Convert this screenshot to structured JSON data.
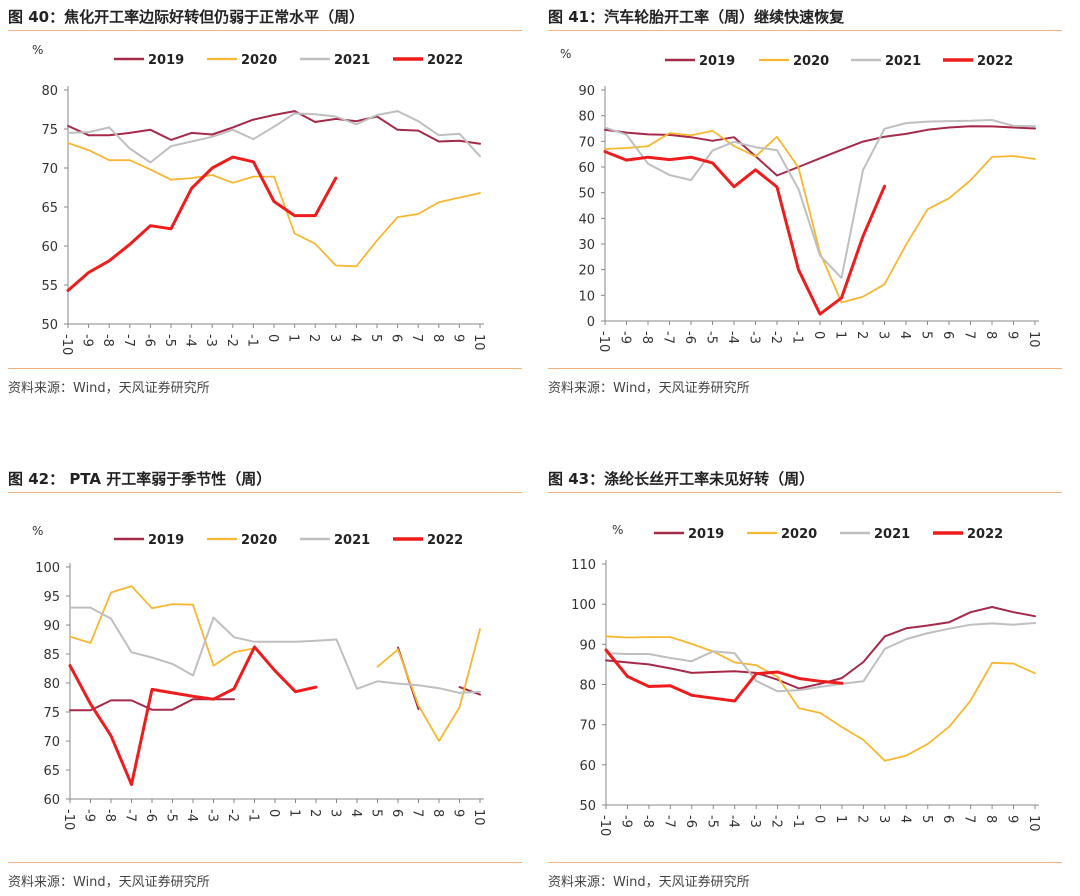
{
  "legend_labels": [
    "2019",
    "2020",
    "2021",
    "2022"
  ],
  "colors": {
    "2019": "#a52a4a",
    "2020": "#f7b731",
    "2021": "#bfbfbf",
    "2022": "#ee1c1c"
  },
  "chart_data": [
    {
      "type": "line",
      "title": "图 40：焦化开工率边际好转但仍弱于正常水平（周）",
      "source": "资料来源：Wind，天风证券研究所",
      "ylabel": "%",
      "ylim": [
        50,
        80
      ],
      "yticks": [
        50,
        55,
        60,
        65,
        70,
        75,
        80
      ],
      "x": [
        -10,
        -9,
        -8,
        -7,
        -6,
        -5,
        -4,
        -3,
        -2,
        -1,
        0,
        1,
        2,
        3,
        4,
        5,
        6,
        7,
        8,
        9,
        10
      ],
      "series": [
        {
          "name": "2019",
          "values": [
            75.4,
            74.2,
            74.2,
            74.5,
            74.9,
            73.6,
            74.5,
            74.3,
            75.2,
            76.2,
            76.8,
            77.3,
            75.9,
            76.3,
            76.0,
            76.6,
            74.9,
            74.8,
            73.4,
            73.5,
            73.1
          ]
        },
        {
          "name": "2020",
          "values": [
            73.2,
            72.3,
            71.0,
            71.0,
            69.8,
            68.5,
            68.7,
            69.1,
            68.1,
            68.9,
            68.9,
            61.6,
            60.3,
            57.5,
            57.4,
            60.7,
            63.7,
            64.1,
            65.6,
            66.2,
            66.8
          ]
        },
        {
          "name": "2021",
          "values": [
            74.5,
            74.6,
            75.2,
            72.5,
            70.7,
            72.8,
            73.4,
            74.0,
            74.9,
            73.7,
            75.3,
            77.0,
            76.9,
            76.6,
            75.6,
            76.8,
            77.3,
            76.0,
            74.2,
            74.4,
            71.5
          ]
        },
        {
          "name": "2022",
          "values": [
            54.3,
            56.6,
            58.1,
            60.2,
            62.6,
            62.2,
            67.4,
            70.0,
            71.4,
            70.8,
            65.7,
            63.9,
            63.9,
            68.7,
            null,
            null,
            null,
            null,
            null,
            null,
            null
          ]
        }
      ]
    },
    {
      "type": "line",
      "title": "图 41：汽车轮胎开工率（周）继续快速恢复",
      "source": "资料来源：Wind，天风证券研究所",
      "ylabel": "%",
      "ylim": [
        0,
        90
      ],
      "yticks": [
        0,
        10,
        20,
        30,
        40,
        50,
        60,
        70,
        80,
        90
      ],
      "x": [
        -10,
        -9,
        -8,
        -7,
        -6,
        -5,
        -4,
        -3,
        -2,
        -1,
        0,
        1,
        2,
        3,
        4,
        5,
        6,
        7,
        8,
        9,
        10
      ],
      "series": [
        {
          "name": "2019",
          "values": [
            74.5,
            73.4,
            72.7,
            72.5,
            71.6,
            70.2,
            71.6,
            64.2,
            56.7,
            60.0,
            63.4,
            66.7,
            69.9,
            71.8,
            72.9,
            74.5,
            75.4,
            75.9,
            75.8,
            75.4,
            75.0
          ]
        },
        {
          "name": "2020",
          "values": [
            67.0,
            67.4,
            68.1,
            73.2,
            72.3,
            74.1,
            68.2,
            64.1,
            71.8,
            59.8,
            26.6,
            7.2,
            9.5,
            14.3,
            29.7,
            43.5,
            47.8,
            54.8,
            63.9,
            64.3,
            63.1
          ]
        },
        {
          "name": "2021",
          "values": [
            75.4,
            72.6,
            61.3,
            56.9,
            54.9,
            66.4,
            69.8,
            67.7,
            66.6,
            51.4,
            25.5,
            16.8,
            58.8,
            74.9,
            77.1,
            77.7,
            77.9,
            78.0,
            78.3,
            76.0,
            75.9
          ]
        },
        {
          "name": "2022",
          "values": [
            66.0,
            62.7,
            63.8,
            62.9,
            63.8,
            61.6,
            52.3,
            58.9,
            52.2,
            20.0,
            2.7,
            9.0,
            33.0,
            52.5,
            null,
            null,
            null,
            null,
            null,
            null,
            null
          ]
        }
      ]
    },
    {
      "type": "line",
      "title": "图 42： PTA 开工率弱于季节性（周）",
      "source": "资料来源：Wind，天风证券研究所",
      "ylabel": "%",
      "ylim": [
        60,
        100
      ],
      "yticks": [
        60,
        65,
        70,
        75,
        80,
        85,
        90,
        95,
        100
      ],
      "x": [
        -10,
        -9,
        -8,
        -7,
        -6,
        -5,
        -4,
        -3,
        -2,
        -1,
        0,
        1,
        2,
        3,
        4,
        5,
        6,
        7,
        8,
        9,
        10
      ],
      "series": [
        {
          "name": "2019",
          "values": [
            75.3,
            75.3,
            77.0,
            77.0,
            75.4,
            75.4,
            77.2,
            77.2,
            77.2,
            null,
            null,
            null,
            null,
            null,
            null,
            null,
            86.1,
            75.5,
            null,
            79.3,
            78.0
          ]
        },
        {
          "name": "2020",
          "values": [
            88.0,
            86.9,
            95.6,
            96.7,
            92.9,
            93.6,
            93.5,
            83.0,
            85.3,
            86.0,
            null,
            null,
            null,
            null,
            null,
            82.8,
            85.8,
            76.1,
            70.0,
            75.8,
            89.3
          ]
        },
        {
          "name": "2021",
          "values": [
            93.0,
            93.0,
            91.1,
            85.3,
            84.4,
            83.3,
            81.3,
            91.3,
            87.9,
            87.1,
            87.1,
            87.1,
            87.3,
            87.5,
            79.0,
            80.3,
            79.9,
            79.6,
            79.1,
            78.3,
            78.5
          ]
        },
        {
          "name": "2022",
          "values": [
            83.0,
            76.4,
            70.9,
            62.5,
            78.9,
            78.3,
            77.7,
            77.2,
            79.0,
            86.2,
            82.1,
            78.5,
            79.3,
            null,
            null,
            null,
            null,
            null,
            null,
            null,
            null
          ]
        }
      ]
    },
    {
      "type": "line",
      "title": "图 43：涤纶长丝开工率未见好转（周）",
      "source": "资料来源：Wind，天风证券研究所",
      "ylabel": "%",
      "ylim": [
        50,
        110
      ],
      "yticks": [
        50,
        60,
        70,
        80,
        90,
        100,
        110
      ],
      "x": [
        -10,
        -9,
        -8,
        -7,
        -6,
        -5,
        -4,
        -3,
        -2,
        -1,
        0,
        1,
        2,
        3,
        4,
        5,
        6,
        7,
        8,
        9,
        10
      ],
      "series": [
        {
          "name": "2019",
          "values": [
            86.0,
            85.5,
            85.0,
            84.0,
            82.9,
            83.1,
            83.3,
            82.9,
            81.2,
            79.0,
            80.2,
            81.6,
            85.6,
            92.0,
            94.0,
            94.7,
            95.5,
            98.0,
            99.3,
            98.0,
            97.0
          ]
        },
        {
          "name": "2020",
          "values": [
            92.0,
            91.7,
            91.8,
            91.8,
            90.1,
            88.2,
            85.5,
            84.8,
            81.9,
            74.1,
            72.9,
            69.4,
            66.2,
            61.0,
            62.3,
            65.2,
            69.5,
            76.0,
            85.4,
            85.2,
            82.8
          ]
        },
        {
          "name": "2021",
          "values": [
            87.8,
            87.6,
            87.6,
            86.6,
            85.8,
            88.3,
            87.8,
            80.9,
            78.3,
            78.6,
            79.4,
            80.2,
            80.8,
            88.9,
            91.3,
            92.8,
            93.9,
            94.9,
            95.2,
            94.9,
            95.3
          ]
        },
        {
          "name": "2022",
          "values": [
            88.6,
            82.0,
            79.5,
            79.7,
            77.3,
            76.6,
            75.9,
            82.7,
            83.1,
            81.5,
            80.8,
            80.3,
            null,
            null,
            null,
            null,
            null,
            null,
            null,
            null,
            null
          ]
        }
      ]
    }
  ]
}
